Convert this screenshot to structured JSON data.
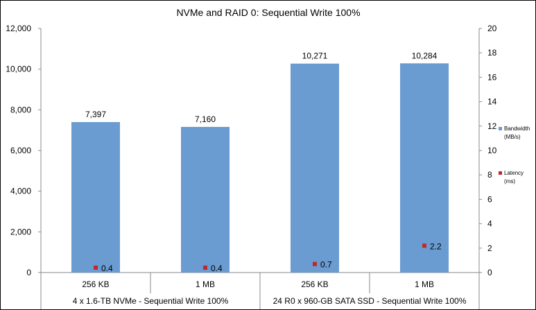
{
  "chart_data": {
    "type": "bar",
    "title": "NVMe and RAID 0: Sequential Write 100%",
    "categories": [
      "256 KB",
      "1 MB",
      "256 KB",
      "1 MB"
    ],
    "groups": [
      {
        "label": "4 x 1.6-TB NVMe - Sequential Write 100%",
        "categories": [
          "256 KB",
          "1 MB"
        ]
      },
      {
        "label": "24 R0 x 960-GB SATA SSD - Sequential Write 100%",
        "categories": [
          "256 KB",
          "1 MB"
        ]
      }
    ],
    "series": [
      {
        "name": "Bandwidth (MB/s)",
        "type": "bar",
        "axis": "left",
        "values": [
          7397,
          7160,
          10271,
          10284
        ],
        "labels": [
          "7,397",
          "7,160",
          "10,271",
          "10,284"
        ],
        "color": "#6a9bd1"
      },
      {
        "name": "Latency (ms)",
        "type": "scatter",
        "axis": "right",
        "values": [
          0.4,
          0.4,
          0.7,
          2.2
        ],
        "labels": [
          "0.4",
          "0.4",
          "0.7",
          "2.2"
        ],
        "color": "#c0282d"
      }
    ],
    "ylim": [
      0,
      12000
    ],
    "yticks": [
      "0",
      "2,000",
      "4,000",
      "6,000",
      "8,000",
      "10,000",
      "12,000"
    ],
    "y2lim": [
      0,
      20
    ],
    "y2ticks": [
      "0",
      "2",
      "4",
      "6",
      "8",
      "10",
      "12",
      "14",
      "16",
      "18",
      "20"
    ],
    "grid": false,
    "legend_position": "right"
  }
}
